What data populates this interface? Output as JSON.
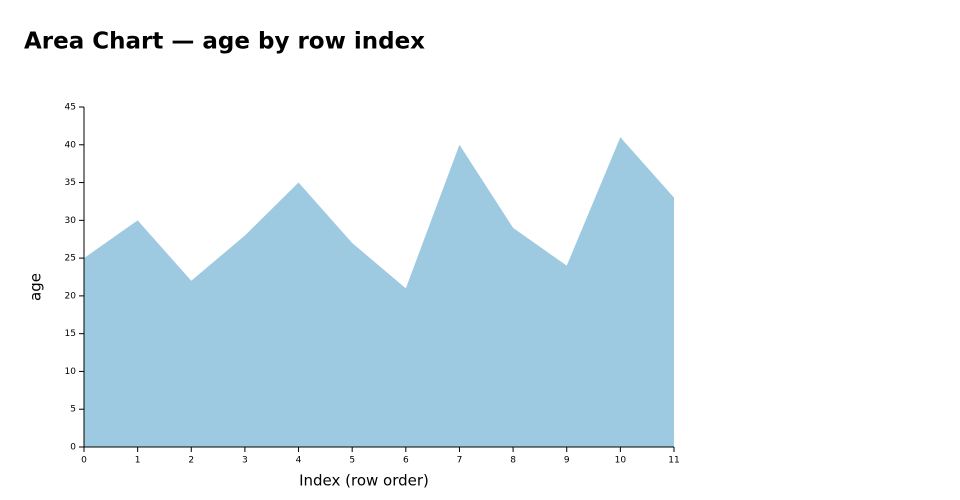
{
  "chart_data": {
    "type": "area",
    "title": "Area Chart — age by row index",
    "x_label": "Index (row order)",
    "y_label": "age",
    "x": [
      0,
      1,
      2,
      3,
      4,
      5,
      6,
      7,
      8,
      9,
      10,
      11
    ],
    "values": [
      25,
      30,
      22,
      28,
      35,
      27,
      21,
      40,
      29,
      24,
      41,
      33
    ],
    "color": "#9ecae1",
    "xlim": [
      0,
      11
    ],
    "xticks": [
      0,
      1,
      2,
      3,
      4,
      5,
      6,
      7,
      8,
      9,
      10,
      11
    ],
    "ylim": [
      0,
      45
    ],
    "yticks": [
      0,
      5,
      10,
      15,
      20,
      25,
      30,
      35,
      40,
      45
    ]
  }
}
